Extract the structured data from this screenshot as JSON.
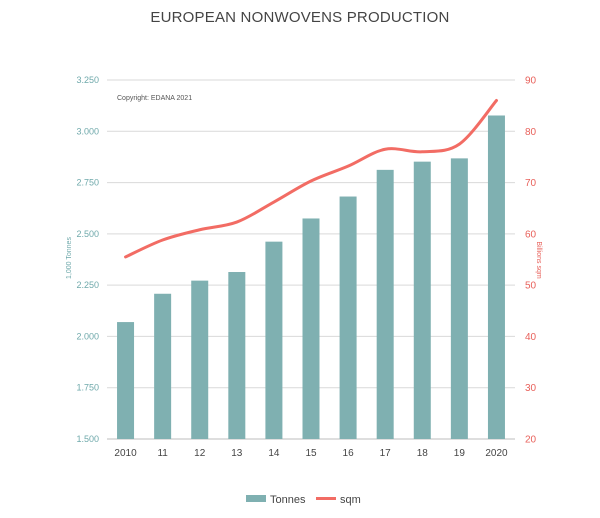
{
  "chart_data": {
    "type": "bar",
    "title": "EUROPEAN NONWOVENS PRODUCTION",
    "annotation": "Copyright: EDANA 2021",
    "categories": [
      "2010",
      "11",
      "12",
      "13",
      "14",
      "15",
      "16",
      "17",
      "18",
      "19",
      "2020"
    ],
    "series": [
      {
        "name": "Tonnes",
        "type": "bar",
        "axis": "left",
        "color": "#7fb0b1",
        "values": [
          2070,
          2208,
          2272,
          2314,
          2462,
          2575,
          2682,
          2812,
          2852,
          2868,
          3077
        ]
      },
      {
        "name": "sqm",
        "type": "line",
        "axis": "right",
        "color": "#f26c64",
        "values": [
          55.5,
          58.8,
          60.8,
          62.3,
          66.2,
          70.3,
          73.2,
          76.5,
          76.0,
          77.5,
          86.0
        ]
      }
    ],
    "ylabel": "1,000 Tonnes",
    "y2label": "Billions sqm",
    "ylim": [
      1500,
      3250
    ],
    "y2lim": [
      20,
      90
    ],
    "yticks": [
      "1.500",
      "1.750",
      "2.000",
      "2.250",
      "2.500",
      "2.750",
      "3.000",
      "3.250"
    ],
    "y2ticks": [
      "20",
      "30",
      "40",
      "50",
      "60",
      "70",
      "80",
      "90"
    ],
    "grid": true,
    "legend": "bottom-center"
  }
}
